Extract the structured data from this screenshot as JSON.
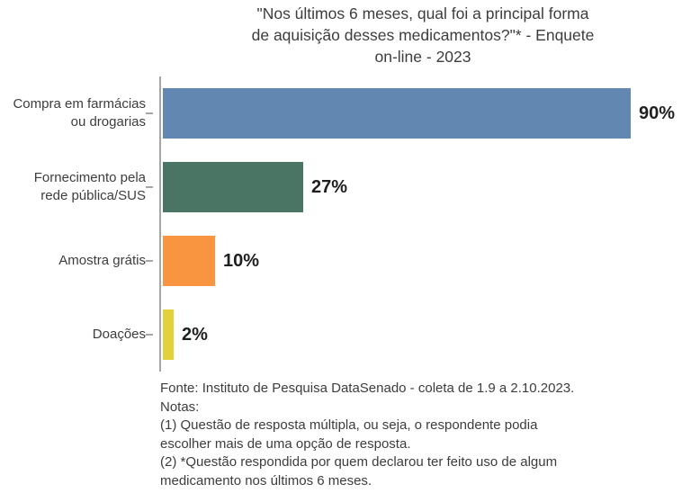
{
  "chart_data": {
    "type": "bar",
    "orientation": "horizontal",
    "title": "\"Nos últimos 6 meses, qual foi a principal forma\nde aquisição desses medicamentos?\"* - Enquete\non-line - 2023",
    "categories": [
      "Compra em farmácias\nou drogarias",
      "Fornecimento pela\nrede pública/SUS",
      "Amostra grátis",
      "Doações"
    ],
    "values": [
      90,
      27,
      10,
      2
    ],
    "value_suffix": "%",
    "bar_colors": [
      "#6288b1",
      "#4a7464",
      "#f99440",
      "#e2d138"
    ],
    "xlim": [
      0,
      100
    ],
    "grid": false,
    "legend": false,
    "axis_color": "#a6a6a6"
  },
  "footer": {
    "note": "Fonte: Instituto de Pesquisa DataSenado - coleta de 1.9 a 2.10.2023.\nNotas:\n(1) Questão de resposta múltipla, ou seja, o respondente podia\nescolher mais de uma opção de resposta.\n(2) *Questão respondida por quem declarou ter feito uso de algum\nmedicamento nos últimos 6 meses."
  }
}
